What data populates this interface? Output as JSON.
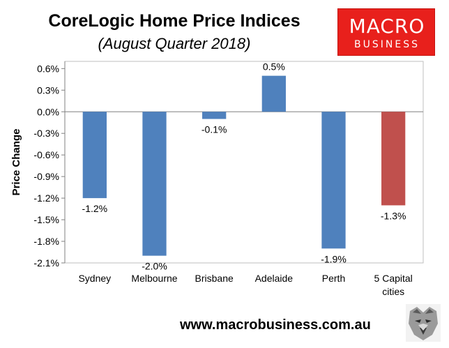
{
  "header": {
    "title": "CoreLogic Home Price Indices",
    "subtitle": "(August Quarter 2018)"
  },
  "logo": {
    "line1": "MACRO",
    "line2": "BUSINESS",
    "color": "#e8201c"
  },
  "footer": {
    "url": "www.macrobusiness.com.au",
    "mascot_icon": "wolf-icon"
  },
  "colors": {
    "bar_default": "#4f81bd",
    "bar_highlight": "#c0504d",
    "plot_border": "#bfbfbf"
  },
  "chart_data": {
    "type": "bar",
    "title": "CoreLogic Home Price Indices",
    "subtitle": "(August Quarter 2018)",
    "xlabel": "",
    "ylabel": "Price Change",
    "categories": [
      "Sydney",
      "Melbourne",
      "Brisbane",
      "Adelaide",
      "Perth",
      "5 Capital cities"
    ],
    "values": [
      -1.2,
      -2.0,
      -0.1,
      0.5,
      -1.9,
      -1.3
    ],
    "data_labels": [
      "-1.2%",
      "-2.0%",
      "-0.1%",
      "0.5%",
      "-1.9%",
      "-1.3%"
    ],
    "highlight_index": 5,
    "ylim": [
      -2.1,
      0.7
    ],
    "yticks": [
      0.6,
      0.3,
      0.0,
      -0.3,
      -0.6,
      -0.9,
      -1.2,
      -1.5,
      -1.8,
      -2.1
    ],
    "ytick_labels": [
      "0.6%",
      "0.3%",
      "0.0%",
      "-0.3%",
      "-0.6%",
      "-0.9%",
      "-1.2%",
      "-1.5%",
      "-1.8%",
      "-2.1%"
    ],
    "grid": false,
    "legend": "none"
  }
}
